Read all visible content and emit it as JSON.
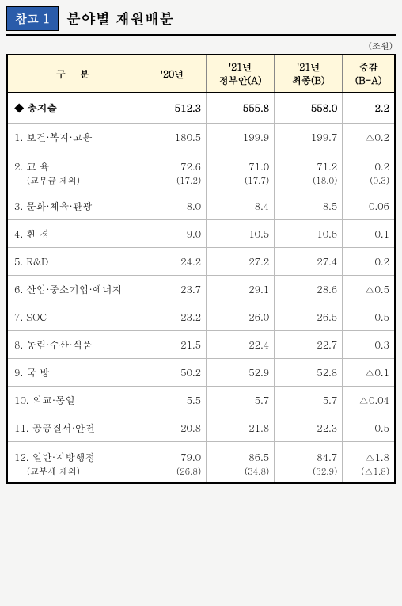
{
  "header": {
    "ref_label": "참고 1",
    "title": "분야별 재원배분",
    "unit": "(조원)"
  },
  "columns": {
    "category": "구분",
    "y20": "'20년",
    "y21a": "'21년\n정부안(A)",
    "y21b": "'21년\n최종(B)",
    "diff": "증감\n(B-A)"
  },
  "total": {
    "label": "◆ 총지출",
    "y20": "512.3",
    "y21a": "555.8",
    "y21b": "558.0",
    "diff": "2.2"
  },
  "rows": [
    {
      "label": "1. 보건·복지·고용",
      "y20": "180.5",
      "y21a": "199.9",
      "y21b": "199.7",
      "diff": "△0.2"
    },
    {
      "label": "2. 교 육",
      "y20": "72.6",
      "y21a": "71.0",
      "y21b": "71.2",
      "diff": "0.2",
      "sub": {
        "label": "(교부금 제외)",
        "y20": "(17.2)",
        "y21a": "(17.7)",
        "y21b": "(18.0)",
        "diff": "(0.3)"
      }
    },
    {
      "label": "3. 문화·체육·관광",
      "y20": "8.0",
      "y21a": "8.4",
      "y21b": "8.5",
      "diff": "0.06"
    },
    {
      "label": "4. 환 경",
      "y20": "9.0",
      "y21a": "10.5",
      "y21b": "10.6",
      "diff": "0.1"
    },
    {
      "label": "5. R&D",
      "y20": "24.2",
      "y21a": "27.2",
      "y21b": "27.4",
      "diff": "0.2"
    },
    {
      "label": "6. 산업·중소기업·에너지",
      "y20": "23.7",
      "y21a": "29.1",
      "y21b": "28.6",
      "diff": "△0.5"
    },
    {
      "label": "7. SOC",
      "y20": "23.2",
      "y21a": "26.0",
      "y21b": "26.5",
      "diff": "0.5"
    },
    {
      "label": "8. 농림·수산·식품",
      "y20": "21.5",
      "y21a": "22.4",
      "y21b": "22.7",
      "diff": "0.3"
    },
    {
      "label": "9. 국 방",
      "y20": "50.2",
      "y21a": "52.9",
      "y21b": "52.8",
      "diff": "△0.1"
    },
    {
      "label": "10. 외교·통일",
      "y20": "5.5",
      "y21a": "5.7",
      "y21b": "5.7",
      "diff": "△0.04"
    },
    {
      "label": "11. 공공질서·안전",
      "y20": "20.8",
      "y21a": "21.8",
      "y21b": "22.3",
      "diff": "0.5"
    },
    {
      "label": "12. 일반·지방행정",
      "y20": "79.0",
      "y21a": "86.5",
      "y21b": "84.7",
      "diff": "△1.8",
      "sub": {
        "label": "(교부세 제외)",
        "y20": "(26.8)",
        "y21a": "(34.8)",
        "y21b": "(32.9)",
        "diff": "(△1.8)"
      }
    }
  ],
  "styling": {
    "header_bg": "#fff8dc",
    "ref_bg": "#2a5caa",
    "border_heavy": "#000000",
    "border_light": "#bbbbbb",
    "body_bg": "#f5f5f4",
    "cell_bg": "#ffffff",
    "font_header_pt": 12,
    "font_cell_pt": 12.5,
    "font_title_pt": 18
  }
}
